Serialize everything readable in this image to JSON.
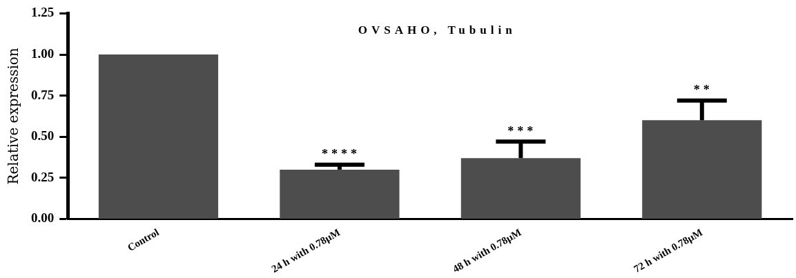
{
  "chart_data": {
    "type": "bar",
    "title": "OVSAHO, Tubulin",
    "ylabel": "Relative expression",
    "categories": [
      "Control",
      "24 h with 0.78µM",
      "48 h with 0.78µM",
      "72 h with 0.78µM"
    ],
    "values": [
      1.0,
      0.3,
      0.37,
      0.6
    ],
    "color": "#4d4d4d",
    "errors": [
      null,
      [
        0.3,
        0.33
      ],
      [
        0.37,
        0.47
      ],
      [
        0.6,
        0.72
      ]
    ],
    "ylim": [
      0,
      1.25
    ],
    "yticks": [
      {
        "value": 0,
        "label": "0.00"
      },
      {
        "value": 0.25,
        "label": "0.25"
      },
      {
        "value": 0.5,
        "label": "0.50"
      },
      {
        "value": 0.75,
        "label": "0.75"
      },
      {
        "value": 1,
        "label": "1.00"
      },
      {
        "value": 1.25,
        "label": "1.25"
      }
    ],
    "annotations": [
      {
        "text": "****",
        "x": "24 h with 0.78µM",
        "y": 0.33
      },
      {
        "text": "***",
        "x": "48 h with 0.78µM",
        "y": 0.47
      },
      {
        "text": "**",
        "x": "72 h with 0.78µM",
        "y": 0.72
      }
    ],
    "grid": false,
    "legend": false
  }
}
